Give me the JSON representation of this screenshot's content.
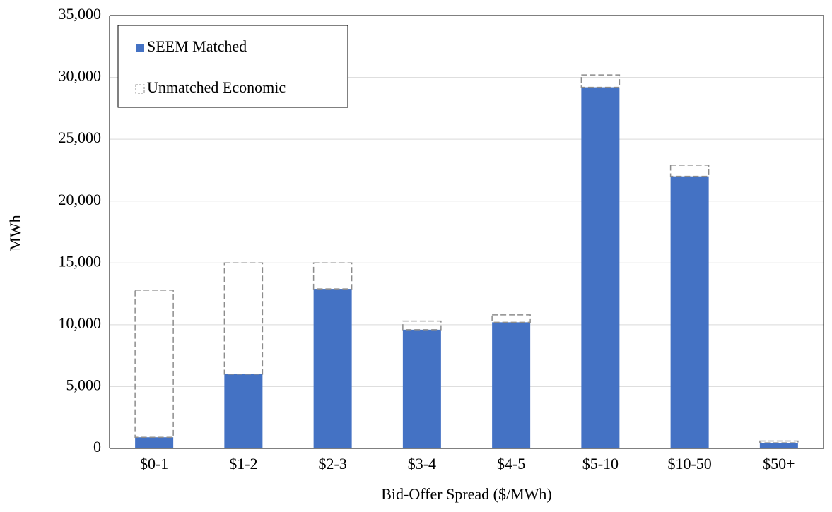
{
  "chart_data": {
    "type": "stacked_bar",
    "x_label": "Bid-Offer Spread ($/MWh)",
    "y_label": "MWh",
    "categories": [
      "$0-1",
      "$1-2",
      "$2-3",
      "$3-4",
      "$4-5",
      "$5-10",
      "$10-50",
      "$50+"
    ],
    "series": [
      {
        "name": "SEEM Matched",
        "color": "#4472c4",
        "style": "solid",
        "values": [
          900,
          6000,
          12900,
          9600,
          10200,
          29200,
          22000,
          450
        ]
      },
      {
        "name": "Unmatched Economic",
        "color": "#8c8c8c",
        "style": "dashed",
        "values": [
          11900,
          9000,
          2100,
          700,
          600,
          1000,
          900,
          150
        ]
      }
    ],
    "ylim": [
      0,
      35000
    ],
    "yticks": [
      {
        "value": 0,
        "label": "0"
      },
      {
        "value": 5000,
        "label": "5,000"
      },
      {
        "value": 10000,
        "label": "10,000"
      },
      {
        "value": 15000,
        "label": "15,000"
      },
      {
        "value": 20000,
        "label": "20,000"
      },
      {
        "value": 25000,
        "label": "25,000"
      },
      {
        "value": 30000,
        "label": "30,000"
      },
      {
        "value": 35000,
        "label": "35,000"
      }
    ],
    "grid": true,
    "legend": "upper-left"
  }
}
